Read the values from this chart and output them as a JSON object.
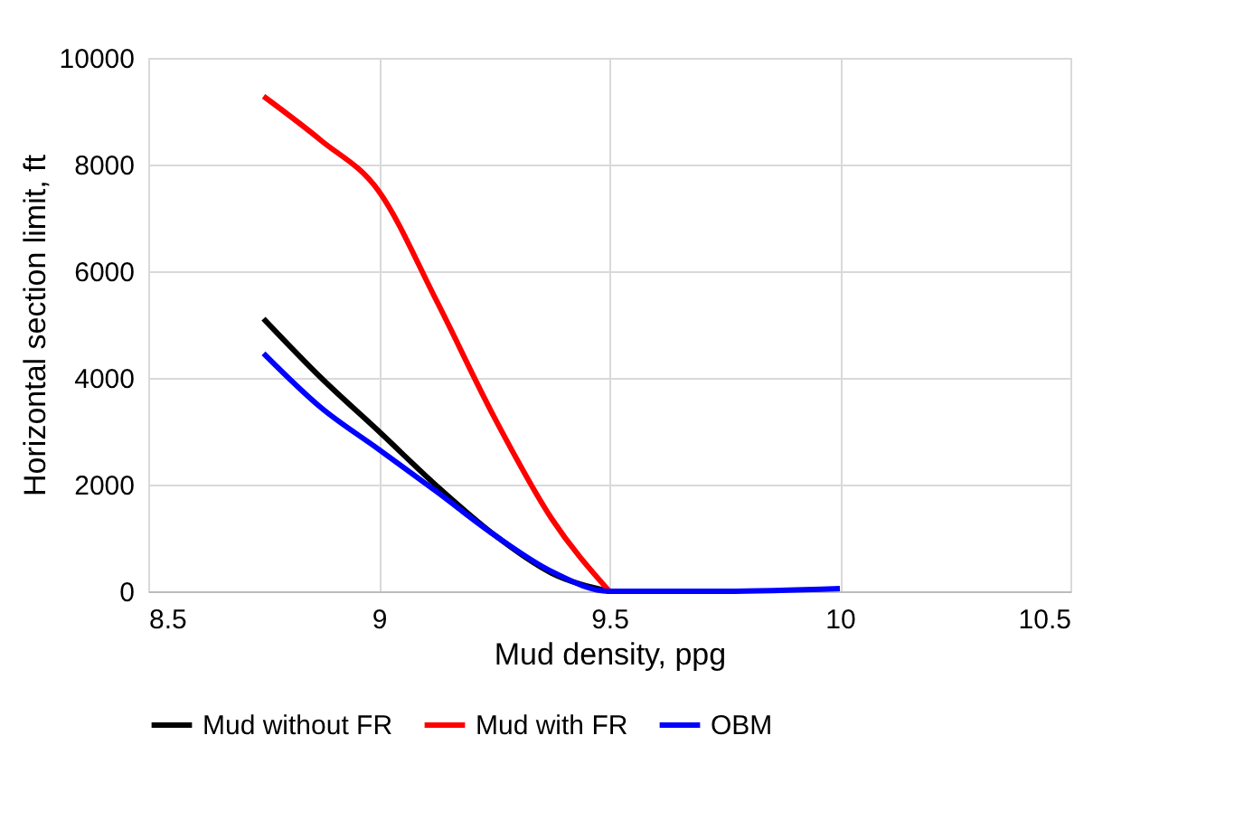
{
  "chart_data": {
    "type": "line",
    "xlabel": "Mud density, ppg",
    "ylabel": "Horizontal section limit, ft",
    "xlim": [
      8.5,
      10.5
    ],
    "xticks": [
      8.5,
      9,
      9.5,
      10,
      10.5
    ],
    "ylim": [
      0,
      10000
    ],
    "yticks": [
      0,
      2000,
      4000,
      6000,
      8000,
      10000
    ],
    "grid": true,
    "legend": "bottom",
    "marker": "none",
    "line_style": "solid",
    "series": [
      {
        "name": "Mud without FR",
        "color": "#000000",
        "x": [
          8.75,
          8.875,
          9.0,
          9.125,
          9.25,
          9.375,
          9.5
        ],
        "values": [
          5110,
          4000,
          3000,
          1980,
          1060,
          340,
          0
        ]
      },
      {
        "name": "Mud with FR",
        "color": "#ff0000",
        "x": [
          8.75,
          8.875,
          9.0,
          9.125,
          9.25,
          9.375,
          9.5
        ],
        "values": [
          9280,
          8450,
          7500,
          5450,
          3270,
          1360,
          0
        ]
      },
      {
        "name": "OBM",
        "color": "#0000ff",
        "x": [
          8.75,
          8.875,
          9.0,
          9.125,
          9.25,
          9.375,
          9.5,
          9.75,
          10.0
        ],
        "values": [
          4460,
          3440,
          2660,
          1870,
          1060,
          370,
          0,
          0,
          50
        ]
      }
    ]
  }
}
